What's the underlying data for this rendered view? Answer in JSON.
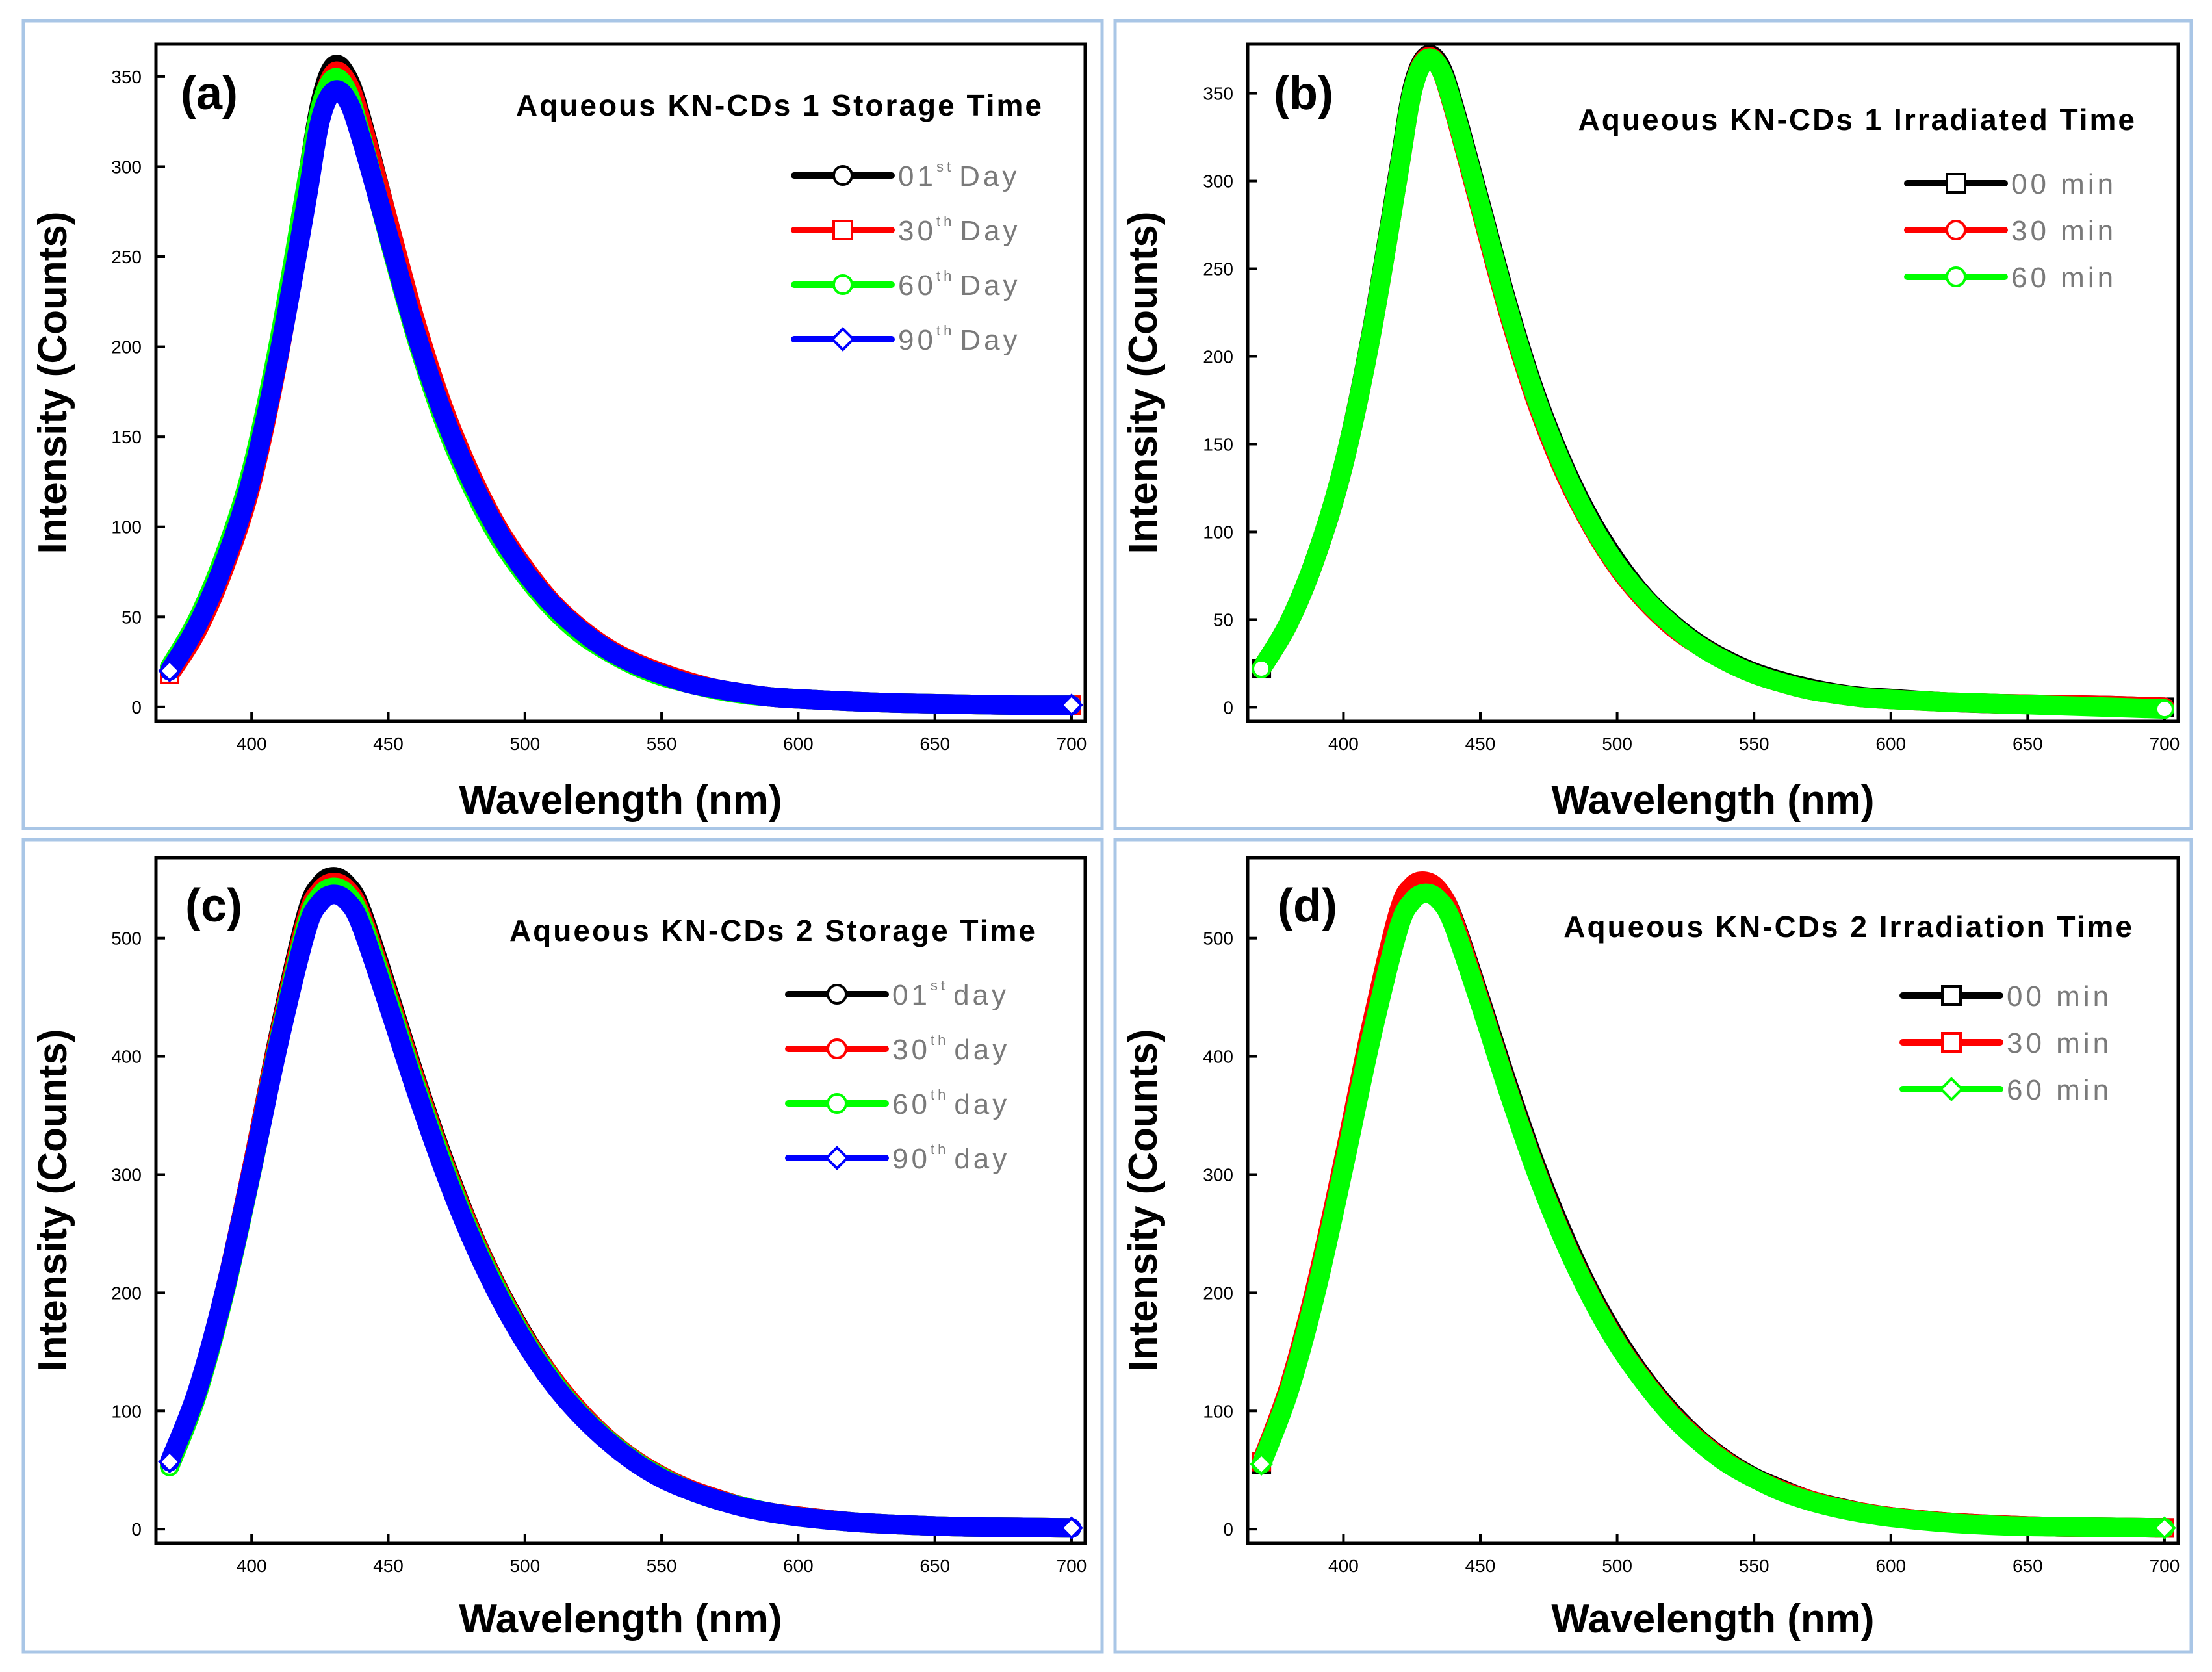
{
  "figure": {
    "panels": [
      {
        "id": "a",
        "label": "(a)",
        "title": "Aqueous KN-CDs 1 Storage Time"
      },
      {
        "id": "b",
        "label": "(b)",
        "title": "Aqueous KN-CDs 1 Irradiated Time"
      },
      {
        "id": "c",
        "label": "(c)",
        "title": "Aqueous KN-CDs 2 Storage Time"
      },
      {
        "id": "d",
        "label": "(d)",
        "title": "Aqueous KN-CDs 2 Irradiation Time"
      }
    ]
  },
  "chart_data": [
    {
      "type": "line",
      "label": "(a)",
      "title": "Aqueous KN-CDs 1 Storage Time",
      "xlabel": "Wavelength (nm)",
      "ylabel": "Intensity (Counts)",
      "xlim": [
        365,
        705
      ],
      "ylim": [
        -8,
        368
      ],
      "xticks": [
        400,
        450,
        500,
        550,
        600,
        650,
        700
      ],
      "yticks": [
        0,
        50,
        100,
        150,
        200,
        250,
        300,
        350
      ],
      "x": [
        370,
        380,
        390,
        400,
        410,
        420,
        425,
        430,
        435,
        440,
        450,
        460,
        470,
        480,
        490,
        500,
        510,
        520,
        530,
        540,
        550,
        560,
        570,
        580,
        590,
        600,
        620,
        640,
        660,
        680,
        700
      ],
      "series": [
        {
          "name": "01st Day",
          "base": "01",
          "sup": "st",
          "unit": "Day",
          "color": "#000000",
          "marker": "circle",
          "peak": 356,
          "values": [
            20,
            45,
            80,
            128,
            200,
            290,
            335,
            356,
            350,
            328,
            270,
            213,
            165,
            128,
            98,
            75,
            57,
            43,
            32,
            24,
            18,
            13,
            10,
            7.5,
            5.5,
            4.5,
            3,
            2,
            1.5,
            1,
            1
          ]
        },
        {
          "name": "30th Day",
          "base": "30",
          "sup": "th",
          "unit": "Day",
          "color": "#ff0000",
          "marker": "square",
          "peak": 352,
          "values": [
            18,
            42,
            77,
            124,
            195,
            284,
            330,
            352,
            347,
            326,
            270,
            214,
            167,
            130,
            100,
            77,
            58,
            44,
            33,
            25,
            19,
            14,
            10,
            7.5,
            5.5,
            4.5,
            3,
            2,
            1.5,
            1,
            1
          ]
        },
        {
          "name": "60th Day",
          "base": "60",
          "sup": "th",
          "unit": "Day",
          "color": "#00ff00",
          "marker": "circle",
          "peak": 349,
          "values": [
            22,
            48,
            84,
            132,
            203,
            290,
            332,
            349,
            342,
            318,
            261,
            206,
            160,
            124,
            95,
            73,
            55,
            41,
            31,
            23,
            17,
            13,
            9.5,
            7,
            5.5,
            4.5,
            3,
            2,
            1.5,
            1,
            1
          ]
        },
        {
          "name": "90th Day",
          "base": "90",
          "sup": "th",
          "unit": "Day",
          "color": "#0000ff",
          "marker": "diamond",
          "peak": 342,
          "values": [
            20,
            45,
            80,
            127,
            196,
            280,
            325,
            342,
            337,
            316,
            262,
            208,
            163,
            127,
            98,
            75,
            57,
            43,
            32,
            24,
            18,
            13,
            10,
            7.5,
            5.5,
            4.5,
            3,
            2,
            1.5,
            1,
            1
          ]
        }
      ]
    },
    {
      "type": "line",
      "label": "(b)",
      "title": "Aqueous KN-CDs 1 Irradiated Time",
      "xlabel": "Wavelength (nm)",
      "ylabel": "Intensity (Counts)",
      "xlim": [
        365,
        705
      ],
      "ylim": [
        -8,
        378
      ],
      "xticks": [
        400,
        450,
        500,
        550,
        600,
        650,
        700
      ],
      "yticks": [
        0,
        50,
        100,
        150,
        200,
        250,
        300,
        350
      ],
      "x": [
        370,
        380,
        390,
        400,
        410,
        420,
        425,
        430,
        435,
        440,
        450,
        460,
        470,
        480,
        490,
        500,
        510,
        520,
        530,
        540,
        550,
        560,
        570,
        580,
        590,
        600,
        620,
        640,
        660,
        680,
        700
      ],
      "series": [
        {
          "name": "00 min",
          "base": "00 min",
          "sup": "",
          "unit": "",
          "color": "#000000",
          "marker": "square",
          "peak": 371,
          "values": [
            22,
            48,
            86,
            138,
            212,
            305,
            352,
            371,
            367,
            345,
            288,
            230,
            180,
            140,
            108,
            83,
            63,
            48,
            36,
            27,
            20,
            15,
            11,
            8,
            6,
            5,
            3,
            2,
            1.5,
            1,
            0
          ]
        },
        {
          "name": "30 min",
          "base": "30 min",
          "sup": "",
          "unit": "",
          "color": "#ff0000",
          "marker": "circle",
          "peak": 370,
          "values": [
            22,
            48,
            86,
            138,
            211,
            303,
            350,
            370,
            365,
            342,
            284,
            226,
            176,
            136,
            105,
            80,
            61,
            46,
            35,
            26,
            19,
            14,
            10,
            7.5,
            5.5,
            4.5,
            3,
            2,
            1.5,
            1,
            0
          ]
        },
        {
          "name": "60 min",
          "base": "60 min",
          "sup": "",
          "unit": "",
          "color": "#00ff00",
          "marker": "circle",
          "peak": 369,
          "values": [
            22,
            48,
            86,
            138,
            211,
            303,
            350,
            369,
            365,
            343,
            286,
            228,
            178,
            138,
            106,
            81,
            62,
            47,
            35,
            26,
            19,
            14,
            10,
            7.5,
            5.5,
            4.5,
            3,
            2,
            1,
            0,
            -1
          ]
        }
      ]
    },
    {
      "type": "line",
      "label": "(c)",
      "title": "Aqueous KN-CDs 2 Storage Time",
      "xlabel": "Wavelength (nm)",
      "ylabel": "Intensity (Counts)",
      "xlim": [
        365,
        705
      ],
      "ylim": [
        -12,
        568
      ],
      "xticks": [
        400,
        450,
        500,
        550,
        600,
        650,
        700
      ],
      "yticks": [
        0,
        100,
        200,
        300,
        400,
        500
      ],
      "x": [
        370,
        380,
        390,
        400,
        410,
        420,
        425,
        430,
        435,
        440,
        450,
        460,
        470,
        480,
        490,
        500,
        510,
        520,
        530,
        540,
        550,
        560,
        570,
        580,
        590,
        600,
        620,
        640,
        660,
        680,
        700
      ],
      "series": [
        {
          "name": "01st day",
          "base": "01",
          "sup": "st",
          "unit": "day",
          "color": "#000000",
          "marker": "circle",
          "peak": 552,
          "values": [
            55,
            115,
            200,
            305,
            420,
            520,
            545,
            552,
            545,
            525,
            455,
            382,
            315,
            255,
            205,
            163,
            128,
            100,
            77,
            59,
            45,
            34,
            26,
            19,
            14,
            11,
            6,
            3.5,
            2,
            1.5,
            1
          ]
        },
        {
          "name": "30th day",
          "base": "30",
          "sup": "th",
          "unit": "day",
          "color": "#ff0000",
          "marker": "circle",
          "peak": 547,
          "values": [
            55,
            115,
            200,
            305,
            418,
            516,
            540,
            547,
            541,
            521,
            452,
            380,
            313,
            254,
            204,
            162,
            128,
            100,
            77,
            59,
            45,
            34,
            26,
            19,
            14,
            11,
            6,
            3.5,
            2,
            1.5,
            1
          ]
        },
        {
          "name": "60th day",
          "base": "60",
          "sup": "th",
          "unit": "day",
          "color": "#00ff00",
          "marker": "circle",
          "peak": 543,
          "values": [
            53,
            113,
            198,
            302,
            414,
            511,
            536,
            543,
            537,
            517,
            448,
            376,
            310,
            251,
            202,
            160,
            126,
            98,
            76,
            58,
            44,
            33,
            25,
            19,
            14,
            10.5,
            6,
            3.5,
            2,
            1.5,
            1
          ]
        },
        {
          "name": "90th day",
          "base": "90",
          "sup": "th",
          "unit": "day",
          "color": "#0000ff",
          "marker": "diamond",
          "peak": 537,
          "values": [
            57,
            116,
            200,
            303,
            412,
            506,
            530,
            537,
            531,
            511,
            443,
            372,
            306,
            248,
            199,
            158,
            124,
            97,
            75,
            57,
            43,
            33,
            25,
            18.5,
            14,
            10.5,
            6,
            3.5,
            2,
            1.5,
            1
          ]
        }
      ]
    },
    {
      "type": "line",
      "label": "(d)",
      "title": "Aqueous KN-CDs 2 Irradiation Time",
      "xlabel": "Wavelength (nm)",
      "ylabel": "Intensity (Counts)",
      "xlim": [
        365,
        705
      ],
      "ylim": [
        -12,
        568
      ],
      "xticks": [
        400,
        450,
        500,
        550,
        600,
        650,
        700
      ],
      "yticks": [
        0,
        100,
        200,
        300,
        400,
        500
      ],
      "x": [
        370,
        380,
        390,
        400,
        410,
        420,
        425,
        430,
        435,
        440,
        450,
        460,
        470,
        480,
        490,
        500,
        510,
        520,
        530,
        540,
        550,
        560,
        570,
        580,
        590,
        600,
        620,
        640,
        660,
        680,
        700
      ],
      "series": [
        {
          "name": "00 min",
          "base": "00 min",
          "sup": "",
          "unit": "",
          "color": "#000000",
          "marker": "square",
          "peak": 546,
          "values": [
            55,
            117,
            203,
            308,
            420,
            516,
            540,
            546,
            539,
            518,
            449,
            377,
            310,
            252,
            202,
            161,
            127,
            99,
            76,
            58,
            44,
            34,
            25,
            19,
            14,
            10.5,
            6,
            3.5,
            2,
            1.5,
            1
          ]
        },
        {
          "name": "30 min",
          "base": "30 min",
          "sup": "",
          "unit": "",
          "color": "#ff0000",
          "marker": "square",
          "peak": 548,
          "values": [
            57,
            120,
            207,
            312,
            424,
            521,
            544,
            548,
            540,
            517,
            446,
            373,
            306,
            248,
            199,
            158,
            125,
            97,
            75,
            57,
            43,
            33,
            25,
            18.5,
            14,
            10.5,
            6,
            3.5,
            2,
            1.5,
            1
          ]
        },
        {
          "name": "60 min",
          "base": "60 min",
          "sup": "",
          "unit": "",
          "color": "#00ff00",
          "marker": "diamond",
          "peak": 538,
          "values": [
            55,
            116,
            201,
            305,
            414,
            507,
            531,
            538,
            532,
            512,
            444,
            372,
            305,
            247,
            198,
            157,
            124,
            96,
            74,
            56,
            43,
            32,
            24,
            18,
            13.5,
            10,
            5.5,
            3,
            2,
            1.5,
            1
          ]
        }
      ]
    }
  ]
}
